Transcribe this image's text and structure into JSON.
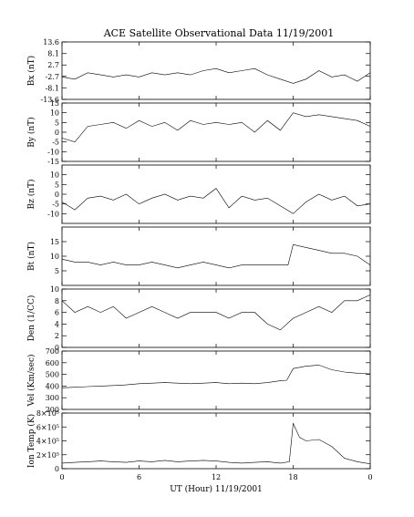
{
  "chart_data": {
    "type": "line",
    "title": "ACE Satellite Observational Data   11/19/2001",
    "xlabel": "UT (Hour)  11/19/2001",
    "x_ticks": [
      "0",
      "6",
      "12",
      "18",
      "0"
    ],
    "x_tick_hours": [
      0,
      6,
      12,
      18,
      24
    ],
    "xlim": [
      0,
      24
    ],
    "grid": false,
    "line_color": "#000000",
    "panels": [
      {
        "ylabel": "Bx (nT)",
        "ylim": [
          -13.6,
          13.6
        ],
        "y_ticks": [
          13.6,
          8.1,
          2.7,
          -2.7,
          -8.1,
          -13.6
        ],
        "y_tick_labels": [
          "13.6",
          "8.1",
          "2.7",
          "-2.7",
          "-8.1",
          "-13.6"
        ],
        "series": [
          {
            "x": [
              0,
              1,
              2,
              3,
              4,
              5,
              6,
              7,
              8,
              9,
              10,
              11,
              12,
              13,
              14,
              15,
              16,
              17,
              18,
              19,
              20,
              21,
              22,
              23,
              24
            ],
            "y": [
              -3,
              -4,
              -1,
              -2,
              -3,
              -2,
              -3,
              -1,
              -2,
              -1,
              -2,
              0,
              1,
              -1,
              0,
              1,
              -2,
              -4,
              -6,
              -4,
              0,
              -3,
              -2,
              -5,
              -1
            ]
          }
        ]
      },
      {
        "ylabel": "By (nT)",
        "ylim": [
          -15,
          15
        ],
        "y_ticks": [
          15,
          10,
          5,
          0,
          -5,
          -10,
          -15
        ],
        "y_tick_labels": [
          "15",
          "10",
          "5",
          "0",
          "-5",
          "-10",
          "-15"
        ],
        "series": [
          {
            "x": [
              0,
              1,
              2,
              3,
              4,
              5,
              6,
              7,
              8,
              9,
              10,
              11,
              12,
              13,
              14,
              15,
              16,
              17,
              18,
              19,
              20,
              21,
              22,
              23,
              24
            ],
            "y": [
              -3,
              -5,
              3,
              4,
              5,
              2,
              6,
              3,
              5,
              1,
              6,
              4,
              5,
              4,
              5,
              0,
              6,
              1,
              10,
              8,
              9,
              8,
              7,
              6,
              3
            ]
          }
        ]
      },
      {
        "ylabel": "Bz (nT)",
        "ylim": [
          -15,
          15
        ],
        "y_ticks": [
          10,
          5,
          0,
          -5,
          -10
        ],
        "y_tick_labels": [
          "10",
          "5",
          "0",
          "-5",
          "-10"
        ],
        "series": [
          {
            "x": [
              0,
              1,
              2,
              3,
              4,
              5,
              6,
              7,
              8,
              9,
              10,
              11,
              12,
              13,
              14,
              15,
              16,
              17,
              18,
              19,
              20,
              21,
              22,
              23,
              24
            ],
            "y": [
              -4,
              -8,
              -2,
              -1,
              -3,
              0,
              -5,
              -2,
              0,
              -3,
              -1,
              -2,
              3,
              -7,
              -1,
              -3,
              -2,
              -6,
              -10,
              -4,
              0,
              -3,
              -1,
              -6,
              -5
            ]
          }
        ]
      },
      {
        "ylabel": "Bt (nT)",
        "ylim": [
          0,
          20
        ],
        "y_ticks": [
          15,
          10,
          5
        ],
        "y_tick_labels": [
          "15",
          "10",
          "5"
        ],
        "series": [
          {
            "x": [
              0,
              1,
              2,
              3,
              4,
              5,
              6,
              7,
              8,
              9,
              10,
              11,
              12,
              13,
              14,
              15,
              16,
              17,
              17.6,
              18,
              19,
              20,
              21,
              22,
              23,
              24
            ],
            "y": [
              9,
              8,
              8,
              7,
              8,
              7,
              7,
              8,
              7,
              6,
              7,
              8,
              7,
              6,
              7,
              7,
              7,
              7,
              7,
              14,
              13,
              12,
              11,
              11,
              10,
              7
            ]
          }
        ]
      },
      {
        "ylabel": "Den (1/CC)",
        "ylim": [
          0,
          10
        ],
        "y_ticks": [
          10,
          8,
          6,
          4,
          2,
          0
        ],
        "y_tick_labels": [
          "10",
          "8",
          "6",
          "4",
          "2",
          "0"
        ],
        "series": [
          {
            "x": [
              0,
              1,
              2,
              3,
              4,
              5,
              6,
              7,
              8,
              9,
              10,
              11,
              12,
              13,
              14,
              15,
              16,
              17,
              18,
              19,
              20,
              21,
              22,
              23,
              24
            ],
            "y": [
              8,
              6,
              7,
              6,
              7,
              5,
              6,
              7,
              6,
              5,
              6,
              6,
              6,
              5,
              6,
              6,
              4,
              3,
              5,
              6,
              7,
              6,
              8,
              8,
              9
            ]
          }
        ]
      },
      {
        "ylabel": "Vel (Km/sec)",
        "ylim": [
          200,
          700
        ],
        "y_ticks": [
          700,
          600,
          500,
          400,
          300,
          200
        ],
        "y_tick_labels": [
          "700",
          "600",
          "500",
          "400",
          "300",
          "200"
        ],
        "series": [
          {
            "x": [
              0,
              1,
              2,
              3,
              4,
              5,
              6,
              7,
              8,
              9,
              10,
              11,
              12,
              13,
              14,
              15,
              16,
              17,
              17.5,
              18,
              19,
              20,
              21,
              22,
              23,
              24
            ],
            "y": [
              385,
              390,
              395,
              400,
              405,
              410,
              420,
              425,
              430,
              425,
              420,
              425,
              430,
              420,
              425,
              420,
              430,
              445,
              450,
              550,
              570,
              580,
              540,
              520,
              510,
              505
            ]
          }
        ]
      },
      {
        "ylabel": "Ion Temp (K)",
        "ylim": [
          0,
          800000
        ],
        "y_ticks": [
          800000,
          600000,
          400000,
          200000,
          0
        ],
        "y_tick_labels": [
          "8×10⁵",
          "6×10⁵",
          "4×10⁵",
          "2×10⁵",
          "0"
        ],
        "series": [
          {
            "x": [
              0,
              1,
              2,
              3,
              4,
              5,
              6,
              7,
              8,
              9,
              10,
              11,
              12,
              13,
              14,
              15,
              16,
              17,
              17.7,
              18,
              18.5,
              19,
              20,
              21,
              22,
              23,
              24
            ],
            "y": [
              80000,
              90000,
              100000,
              110000,
              100000,
              90000,
              110000,
              100000,
              120000,
              100000,
              110000,
              120000,
              110000,
              90000,
              80000,
              90000,
              100000,
              80000,
              100000,
              650000,
              450000,
              400000,
              420000,
              320000,
              150000,
              100000,
              70000
            ]
          }
        ]
      }
    ]
  }
}
